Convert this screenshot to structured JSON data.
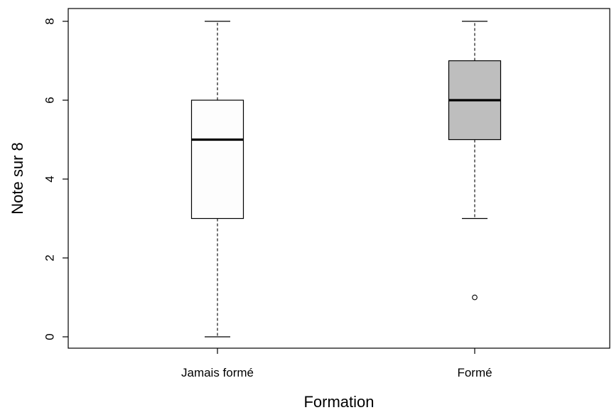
{
  "chart_data": {
    "type": "boxplot",
    "title": "",
    "xlabel": "Formation",
    "ylabel": "Note sur 8",
    "ylim": [
      -0.3,
      8.3
    ],
    "yticks": [
      0,
      2,
      4,
      6,
      8
    ],
    "ytick_labels": [
      "0",
      "2",
      "4",
      "6",
      "8"
    ],
    "grid": false,
    "legend": "none",
    "categories": [
      "Jamais formé",
      "Formé"
    ],
    "boxes": [
      {
        "category": "Jamais formé",
        "whisker_low": 0,
        "q1": 3,
        "median": 5,
        "q3": 6,
        "whisker_high": 8,
        "outliers": [],
        "fill": "#fdfdfd"
      },
      {
        "category": "Formé",
        "whisker_low": 3,
        "q1": 5,
        "median": 6,
        "q3": 7,
        "whisker_high": 8,
        "outliers": [
          1
        ],
        "fill": "#bebebe"
      }
    ],
    "colors": {
      "line": "#000000",
      "background": "#ffffff"
    }
  }
}
